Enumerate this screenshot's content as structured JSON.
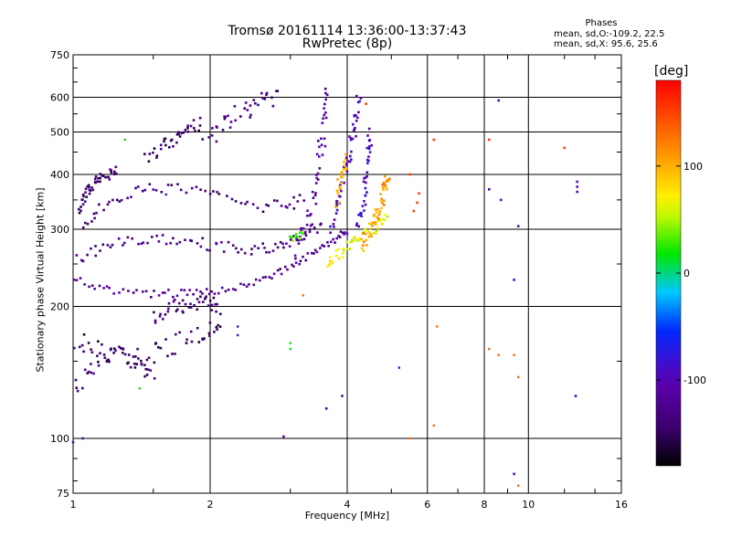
{
  "chart_data": {
    "type": "scatter",
    "title": "Tromsø 20161114 13:36:00-13:37:43",
    "subtitle": "RwPretec (8p)",
    "xlabel": "Frequency [MHz]",
    "ylabel": "Stationary phase Virtual Height [km]",
    "x_scale": "log",
    "y_scale": "log",
    "xlim": [
      1,
      16
    ],
    "ylim": [
      75,
      750
    ],
    "x_ticks": [
      1,
      2,
      4,
      6,
      8,
      10,
      16
    ],
    "x_tick_labels": [
      "1",
      "2",
      "4",
      "6",
      "8",
      "10",
      "16"
    ],
    "y_ticks": [
      75,
      100,
      200,
      300,
      400,
      500,
      600,
      750
    ],
    "y_tick_labels": [
      "75",
      "100",
      "200",
      "300",
      "400",
      "500",
      "600",
      "750"
    ],
    "grid": true,
    "phase_box": {
      "heading": "Phases",
      "o_line": "mean, sd,O:-109.2, 22.5",
      "x_line": "mean, sd,X:  95.6, 25.6"
    },
    "colorbar": {
      "label": "[deg]",
      "range": [
        -180,
        180
      ],
      "ticks": [
        100,
        0,
        -100
      ],
      "tick_labels": [
        "100",
        "0",
        "-100"
      ]
    },
    "traces": [
      {
        "name": "",
        "kind": "curve",
        "phase": -120,
        "jitter": 0.02,
        "count": 90,
        "points": [
          [
            1.0,
            230
          ],
          [
            1.2,
            218
          ],
          [
            1.5,
            214
          ],
          [
            1.8,
            214
          ],
          [
            2.1,
            217
          ],
          [
            2.5,
            226
          ],
          [
            2.9,
            242
          ],
          [
            3.3,
            262
          ],
          [
            3.7,
            282
          ],
          [
            4.0,
            298
          ]
        ]
      },
      {
        "name": "",
        "kind": "curve",
        "phase": -128,
        "jitter": 0.03,
        "count": 80,
        "points": [
          [
            1.02,
            258
          ],
          [
            1.2,
            275
          ],
          [
            1.45,
            286
          ],
          [
            1.75,
            283
          ],
          [
            2.1,
            274
          ],
          [
            2.5,
            270
          ],
          [
            2.85,
            275
          ],
          [
            3.2,
            290
          ],
          [
            3.5,
            305
          ]
        ]
      },
      {
        "name": "",
        "kind": "curve",
        "phase": -135,
        "jitter": 0.03,
        "count": 60,
        "points": [
          [
            1.05,
            300
          ],
          [
            1.15,
            338
          ],
          [
            1.3,
            360
          ],
          [
            1.5,
            372
          ],
          [
            1.8,
            368
          ],
          [
            2.1,
            352
          ],
          [
            2.5,
            338
          ],
          [
            2.9,
            340
          ],
          [
            3.2,
            350
          ]
        ]
      },
      {
        "name": "",
        "kind": "curve",
        "phase": -142,
        "jitter": 0.03,
        "count": 45,
        "points": [
          [
            1.03,
            330
          ],
          [
            1.08,
            370
          ],
          [
            1.15,
            395
          ],
          [
            1.25,
            405
          ]
        ]
      },
      {
        "name": "",
        "kind": "curve",
        "phase": -145,
        "jitter": 0.05,
        "count": 55,
        "points": [
          [
            1.0,
            170
          ],
          [
            1.15,
            158
          ],
          [
            1.35,
            152
          ],
          [
            1.6,
            160
          ],
          [
            1.9,
            175
          ],
          [
            2.1,
            185
          ]
        ]
      },
      {
        "name": "",
        "kind": "curve",
        "phase": -140,
        "jitter": 0.05,
        "count": 40,
        "points": [
          [
            1.0,
            130
          ],
          [
            1.1,
            145
          ],
          [
            1.25,
            155
          ],
          [
            1.4,
            150
          ],
          [
            1.5,
            142
          ]
        ]
      },
      {
        "name": "",
        "kind": "curve",
        "phase": -138,
        "jitter": 0.04,
        "count": 40,
        "points": [
          [
            1.5,
            190
          ],
          [
            1.7,
            200
          ],
          [
            1.9,
            205
          ],
          [
            2.1,
            200
          ]
        ]
      },
      {
        "name": "",
        "kind": "curve",
        "phase": -142,
        "jitter": 0.04,
        "count": 35,
        "points": [
          [
            1.45,
            430
          ],
          [
            1.6,
            470
          ],
          [
            1.75,
            500
          ],
          [
            1.9,
            520
          ]
        ]
      },
      {
        "name": "",
        "kind": "curve",
        "phase": -130,
        "jitter": 0.05,
        "count": 35,
        "points": [
          [
            1.95,
            480
          ],
          [
            2.2,
            530
          ],
          [
            2.5,
            575
          ],
          [
            2.8,
            610
          ]
        ]
      },
      {
        "name": "",
        "kind": "curve",
        "phase": -112,
        "jitter": 0.05,
        "count": 45,
        "points": [
          [
            3.1,
            260
          ],
          [
            3.3,
            320
          ],
          [
            3.45,
            400
          ],
          [
            3.55,
            500
          ],
          [
            3.6,
            620
          ]
        ]
      },
      {
        "name": "",
        "kind": "curve",
        "phase": -98,
        "jitter": 0.04,
        "count": 50,
        "points": [
          [
            3.7,
            300
          ],
          [
            3.85,
            360
          ],
          [
            4.0,
            430
          ],
          [
            4.15,
            500
          ],
          [
            4.25,
            600
          ]
        ]
      },
      {
        "name": "",
        "kind": "curve",
        "phase": -85,
        "jitter": 0.04,
        "count": 35,
        "points": [
          [
            4.2,
            300
          ],
          [
            4.35,
            350
          ],
          [
            4.45,
            420
          ],
          [
            4.5,
            500
          ]
        ]
      },
      {
        "name": "",
        "kind": "curve",
        "phase": 65,
        "jitter": 0.03,
        "count": 45,
        "points": [
          [
            3.6,
            250
          ],
          [
            3.9,
            268
          ],
          [
            4.2,
            285
          ],
          [
            4.6,
            302
          ],
          [
            4.9,
            320
          ]
        ]
      },
      {
        "name": "",
        "kind": "curve",
        "phase": 110,
        "jitter": 0.04,
        "count": 50,
        "points": [
          [
            4.3,
            270
          ],
          [
            4.5,
            300
          ],
          [
            4.65,
            330
          ],
          [
            4.8,
            360
          ],
          [
            4.9,
            395
          ]
        ]
      },
      {
        "name": "",
        "kind": "curve",
        "phase": 95,
        "jitter": 0.04,
        "count": 22,
        "points": [
          [
            3.8,
            350
          ],
          [
            3.9,
            400
          ],
          [
            4.0,
            430
          ]
        ]
      },
      {
        "name": "",
        "kind": "curve",
        "phase": 30,
        "jitter": 0.02,
        "count": 10,
        "points": [
          [
            3.0,
            285
          ],
          [
            3.2,
            292
          ]
        ]
      },
      {
        "name": "",
        "kind": "points",
        "phase": 150,
        "jitter": 0,
        "points": [
          [
            5.7,
            345
          ],
          [
            5.75,
            362
          ],
          [
            5.6,
            330
          ],
          [
            4.4,
            580
          ],
          [
            6.2,
            480
          ],
          [
            8.2,
            480
          ],
          [
            12.0,
            460
          ],
          [
            5.5,
            400
          ]
        ]
      },
      {
        "name": "",
        "kind": "points",
        "phase": -95,
        "jitter": 0,
        "points": [
          [
            8.6,
            590
          ],
          [
            8.7,
            350
          ],
          [
            8.2,
            370
          ],
          [
            9.3,
            230
          ],
          [
            9.5,
            305
          ],
          [
            12.8,
            385
          ],
          [
            12.8,
            375
          ],
          [
            12.8,
            365
          ],
          [
            12.7,
            125
          ],
          [
            3.6,
            117
          ],
          [
            3.9,
            125
          ],
          [
            2.9,
            101
          ],
          [
            9.3,
            83
          ],
          [
            1.05,
            100
          ],
          [
            1.0,
            98
          ]
        ]
      },
      {
        "name": "",
        "kind": "points",
        "phase": 130,
        "jitter": 0,
        "size": 1.2,
        "points": [
          [
            6.2,
            107
          ],
          [
            8.2,
            160
          ],
          [
            8.6,
            155
          ],
          [
            9.3,
            155
          ],
          [
            9.5,
            138
          ],
          [
            9.5,
            78
          ],
          [
            6.3,
            180
          ],
          [
            3.2,
            212
          ],
          [
            5.5,
            100
          ]
        ]
      },
      {
        "name": "",
        "kind": "points",
        "phase": 20,
        "jitter": 0,
        "size": 1.2,
        "points": [
          [
            3.0,
            165
          ],
          [
            3.0,
            160
          ],
          [
            1.4,
            130
          ],
          [
            1.3,
            480
          ]
        ]
      },
      {
        "name": "",
        "kind": "points",
        "phase": -80,
        "jitter": 0,
        "size": 1.2,
        "points": [
          [
            5.2,
            145
          ],
          [
            2.3,
            180
          ],
          [
            2.3,
            172
          ],
          [
            1.6,
            360
          ]
        ]
      }
    ]
  }
}
